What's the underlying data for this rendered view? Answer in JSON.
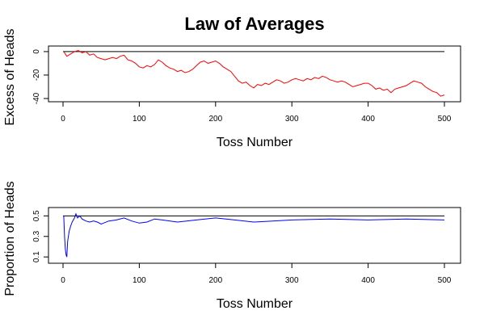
{
  "title": "Law of Averages",
  "colors": {
    "excess_line": "#ff0000",
    "proportion_line": "#0000ff",
    "reference_line": "#000000"
  },
  "chart_data": [
    {
      "type": "line",
      "xlabel": "Toss Number",
      "ylabel": "Excess of Heads",
      "xlim": [
        0,
        500
      ],
      "ylim": [
        -40,
        2
      ],
      "xticks": [
        "0",
        "100",
        "200",
        "300",
        "400",
        "500"
      ],
      "yticks": [
        "0",
        "-20",
        "-40"
      ],
      "reference_y": 0,
      "series": [
        {
          "x": [
            1,
            5,
            10,
            15,
            20,
            25,
            30,
            35,
            40,
            45,
            50,
            55,
            60,
            65,
            70,
            75,
            80,
            85,
            90,
            95,
            100,
            105,
            110,
            115,
            120,
            125,
            130,
            135,
            140,
            145,
            150,
            155,
            160,
            165,
            170,
            175,
            180,
            185,
            190,
            195,
            200,
            205,
            210,
            215,
            220,
            225,
            230,
            235,
            240,
            245,
            250,
            255,
            260,
            265,
            270,
            275,
            280,
            285,
            290,
            295,
            300,
            305,
            310,
            315,
            320,
            325,
            330,
            335,
            340,
            345,
            350,
            355,
            360,
            365,
            370,
            375,
            380,
            385,
            390,
            395,
            400,
            405,
            410,
            415,
            420,
            425,
            430,
            435,
            440,
            445,
            450,
            455,
            460,
            465,
            470,
            475,
            480,
            485,
            490,
            495,
            500
          ],
          "y": [
            0,
            -4,
            -2,
            0,
            1,
            -1,
            0,
            -3,
            -2,
            -5,
            -6,
            -7,
            -6,
            -5,
            -6,
            -4,
            -3,
            -7,
            -8,
            -10,
            -13,
            -14,
            -12,
            -13,
            -11,
            -7,
            -9,
            -12,
            -14,
            -15,
            -17,
            -16,
            -18,
            -17,
            -15,
            -12,
            -9,
            -8,
            -10,
            -9,
            -8,
            -10,
            -13,
            -15,
            -17,
            -21,
            -25,
            -27,
            -26,
            -29,
            -31,
            -28,
            -29,
            -27,
            -28,
            -26,
            -24,
            -25,
            -27,
            -26,
            -24,
            -23,
            -24,
            -25,
            -23,
            -24,
            -22,
            -23,
            -21,
            -22,
            -24,
            -25,
            -26,
            -25,
            -26,
            -28,
            -30,
            -29,
            -28,
            -27,
            -27,
            -29,
            -32,
            -31,
            -33,
            -32,
            -35,
            -32,
            -31,
            -30,
            -29,
            -27,
            -25,
            -26,
            -27,
            -30,
            -32,
            -34,
            -35,
            -38,
            -37
          ]
        }
      ]
    },
    {
      "type": "line",
      "xlabel": "Toss Number",
      "ylabel": "Proportion of Heads",
      "xlim": [
        0,
        500
      ],
      "ylim": [
        0.07,
        0.55
      ],
      "xticks": [
        "0",
        "100",
        "200",
        "300",
        "400",
        "500"
      ],
      "yticks": [
        "0.1",
        "0.3",
        "0.5"
      ],
      "reference_y": 0.5,
      "series": [
        {
          "x": [
            1,
            2,
            3,
            4,
            5,
            6,
            8,
            10,
            12,
            15,
            17,
            19,
            22,
            25,
            30,
            35,
            40,
            45,
            50,
            60,
            70,
            80,
            90,
            100,
            110,
            120,
            130,
            150,
            175,
            200,
            225,
            250,
            275,
            300,
            350,
            400,
            450,
            500
          ],
          "y": [
            0.5,
            0.3,
            0.18,
            0.12,
            0.1,
            0.25,
            0.35,
            0.4,
            0.44,
            0.48,
            0.52,
            0.48,
            0.5,
            0.47,
            0.45,
            0.44,
            0.45,
            0.44,
            0.42,
            0.45,
            0.46,
            0.48,
            0.45,
            0.43,
            0.44,
            0.47,
            0.46,
            0.44,
            0.46,
            0.48,
            0.46,
            0.44,
            0.45,
            0.46,
            0.47,
            0.46,
            0.47,
            0.46
          ]
        }
      ]
    }
  ]
}
